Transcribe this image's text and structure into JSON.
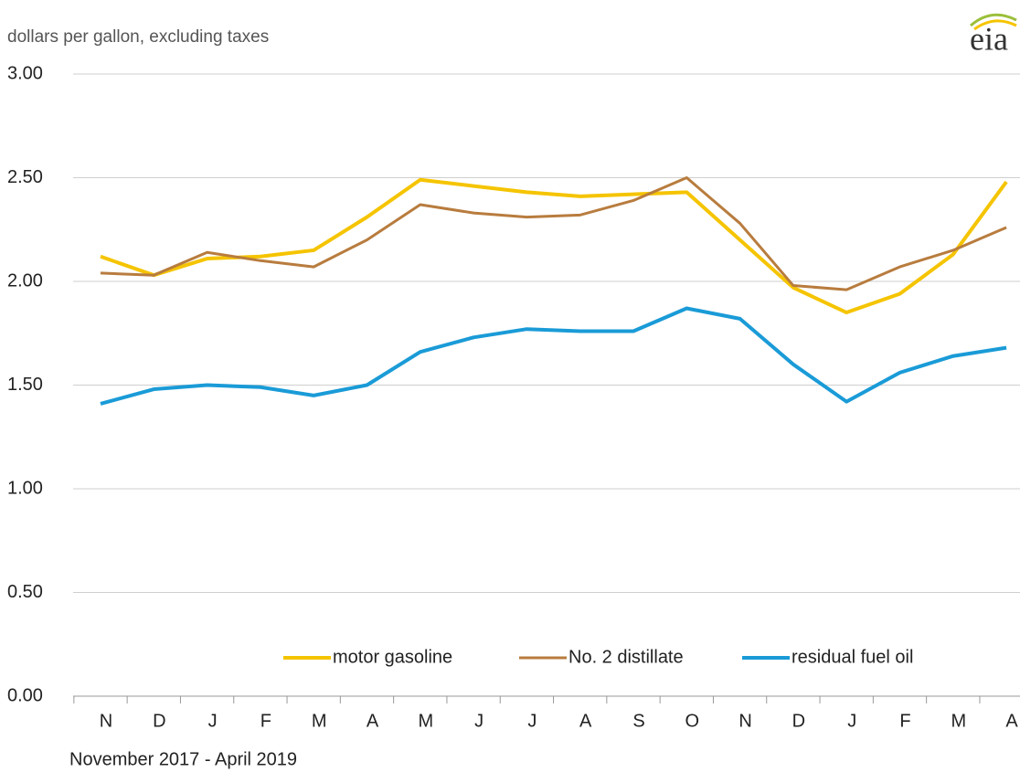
{
  "chart_data": {
    "type": "line",
    "subtitle": "dollars per gallon, excluding taxes",
    "logo": "eia",
    "x_label": "November  2017  -  April 2019",
    "categories": [
      "N",
      "D",
      "J",
      "F",
      "M",
      "A",
      "M",
      "J",
      "J",
      "A",
      "S",
      "O",
      "N",
      "D",
      "J",
      "F",
      "M",
      "A"
    ],
    "ylim": [
      0,
      3
    ],
    "yticks": [
      {
        "value": 0,
        "label": "0.00"
      },
      {
        "value": 0.5,
        "label": "0.50"
      },
      {
        "value": 1,
        "label": "1.00"
      },
      {
        "value": 1.5,
        "label": "1.50"
      },
      {
        "value": 2,
        "label": "2.00"
      },
      {
        "value": 2.5,
        "label": "2.50"
      },
      {
        "value": 3,
        "label": "3.00"
      }
    ],
    "grid": true,
    "legend": "bottom",
    "series": [
      {
        "name": "motor gasoline",
        "color": "#f5c400",
        "width": 4,
        "values": [
          2.12,
          2.03,
          2.11,
          2.12,
          2.15,
          2.31,
          2.49,
          2.46,
          2.43,
          2.41,
          2.42,
          2.43,
          2.2,
          1.97,
          1.85,
          1.94,
          2.13,
          2.48
        ]
      },
      {
        "name": "No. 2 distillate",
        "color": "#b87c3e",
        "width": 3,
        "values": [
          2.04,
          2.03,
          2.14,
          2.1,
          2.07,
          2.2,
          2.37,
          2.33,
          2.31,
          2.32,
          2.39,
          2.5,
          2.28,
          1.98,
          1.96,
          2.07,
          2.15,
          2.26
        ]
      },
      {
        "name": "residual fuel oil",
        "color": "#1a9bd7",
        "width": 4,
        "values": [
          1.41,
          1.48,
          1.5,
          1.49,
          1.45,
          1.5,
          1.66,
          1.73,
          1.77,
          1.76,
          1.76,
          1.87,
          1.82,
          1.6,
          1.42,
          1.56,
          1.64,
          1.68
        ]
      }
    ]
  }
}
